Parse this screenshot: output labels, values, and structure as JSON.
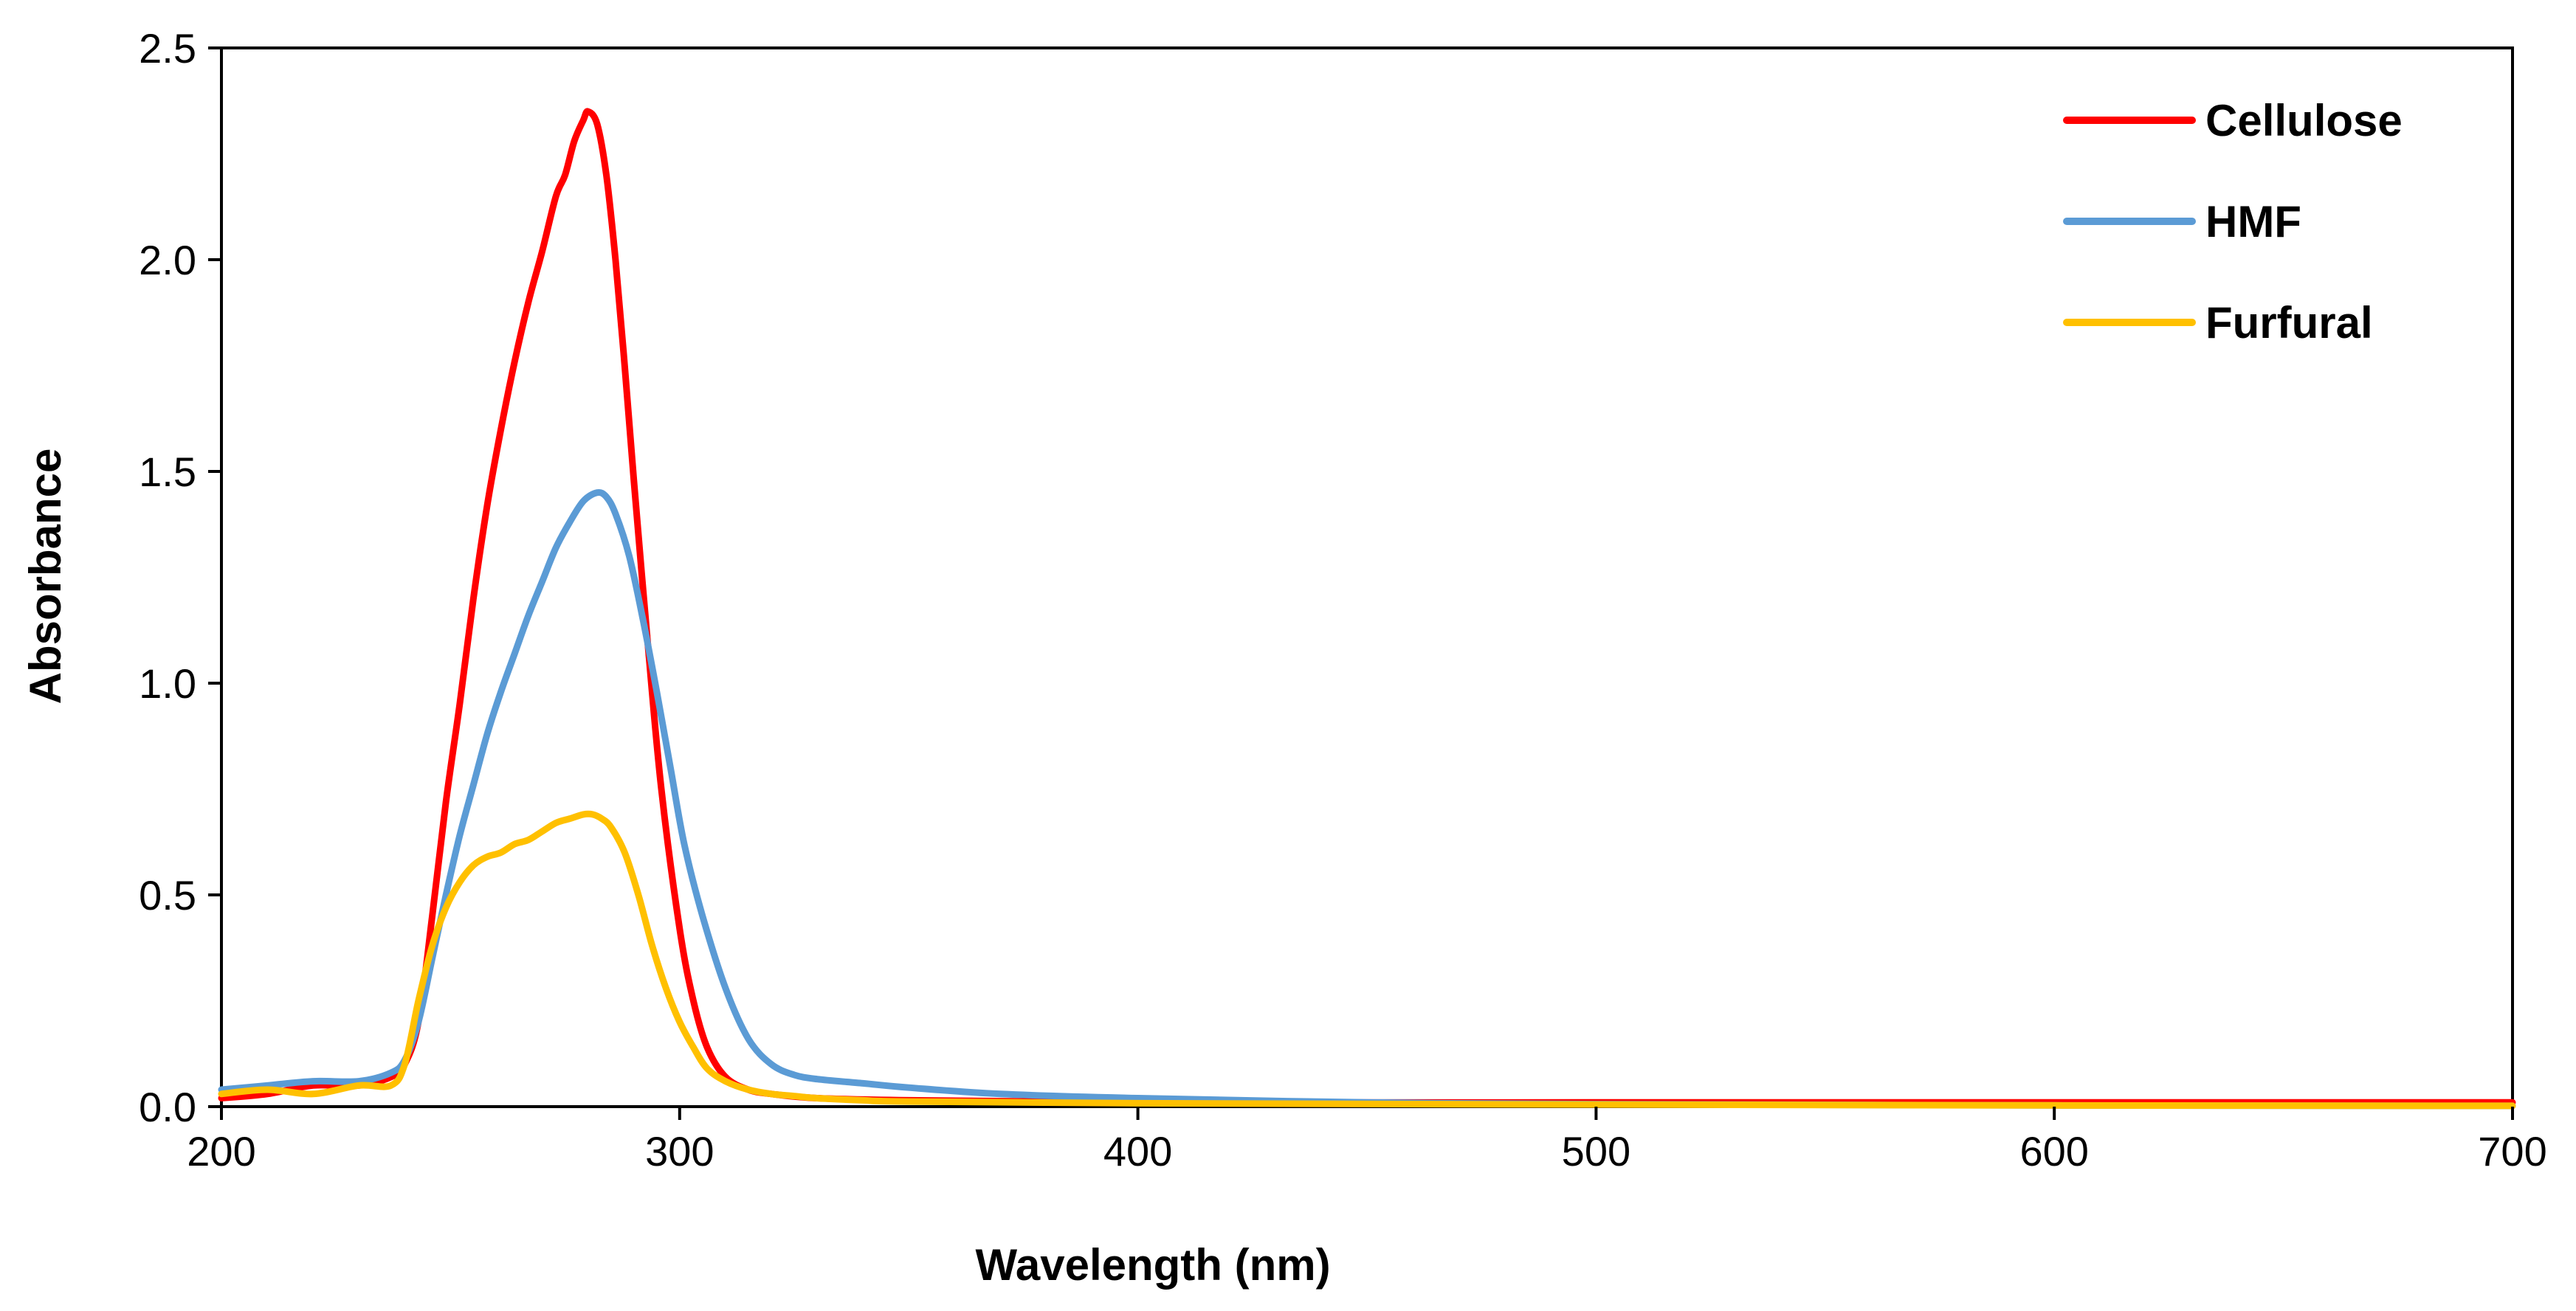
{
  "chart_data": {
    "type": "line",
    "title": "",
    "xlabel": "Wavelength (nm)",
    "ylabel": "Absorbance",
    "xlim": [
      200,
      700
    ],
    "ylim": [
      0,
      2.5
    ],
    "xticks": [
      200,
      300,
      400,
      500,
      600,
      700
    ],
    "yticks": [
      0,
      0.5,
      1,
      1.5,
      2,
      2.5
    ],
    "xtick_labels": [
      "200",
      "300",
      "400",
      "500",
      "600",
      "700"
    ],
    "ytick_labels": [
      "0.0",
      "0.5",
      "1.0",
      "1.5",
      "2.0",
      "2.5"
    ],
    "grid": false,
    "legend_position": "top-right",
    "series": [
      {
        "name": "Cellulose",
        "color": "#ff0000",
        "x": [
          200,
          210,
          220,
          230,
          237,
          240,
          243,
          246,
          249,
          252,
          255,
          258,
          261,
          264,
          267,
          270,
          273,
          275,
          277,
          279,
          280,
          282,
          284,
          286,
          288,
          290,
          293,
          296,
          300,
          303,
          306,
          310,
          315,
          320,
          330,
          350,
          400,
          500,
          600,
          700
        ],
        "y": [
          0.02,
          0.03,
          0.05,
          0.05,
          0.07,
          0.1,
          0.2,
          0.45,
          0.72,
          0.95,
          1.2,
          1.42,
          1.6,
          1.76,
          1.9,
          2.02,
          2.15,
          2.2,
          2.28,
          2.33,
          2.35,
          2.32,
          2.2,
          2.0,
          1.75,
          1.48,
          1.1,
          0.75,
          0.42,
          0.25,
          0.14,
          0.07,
          0.04,
          0.03,
          0.02,
          0.015,
          0.01,
          0.01,
          0.01,
          0.01
        ]
      },
      {
        "name": "HMF",
        "color": "#5b9bd5",
        "x": [
          200,
          210,
          220,
          230,
          237,
          240,
          243,
          246,
          249,
          252,
          255,
          258,
          261,
          264,
          267,
          270,
          273,
          276,
          279,
          282,
          284,
          286,
          289,
          292,
          295,
          298,
          301,
          305,
          310,
          315,
          320,
          325,
          330,
          340,
          350,
          370,
          400,
          450,
          500,
          600,
          700
        ],
        "y": [
          0.04,
          0.05,
          0.06,
          0.06,
          0.08,
          0.11,
          0.2,
          0.35,
          0.5,
          0.64,
          0.76,
          0.88,
          0.98,
          1.07,
          1.16,
          1.24,
          1.32,
          1.38,
          1.43,
          1.45,
          1.44,
          1.4,
          1.3,
          1.15,
          0.98,
          0.8,
          0.62,
          0.45,
          0.28,
          0.16,
          0.1,
          0.075,
          0.065,
          0.055,
          0.045,
          0.03,
          0.02,
          0.01,
          0.006,
          0.003,
          0.002
        ]
      },
      {
        "name": "Furfural",
        "color": "#ffc000",
        "x": [
          200,
          210,
          220,
          230,
          237,
          240,
          243,
          246,
          249,
          252,
          255,
          258,
          261,
          264,
          267,
          270,
          273,
          276,
          279,
          281,
          283,
          285,
          288,
          291,
          294,
          297,
          300,
          303,
          306,
          310,
          315,
          320,
          325,
          330,
          340,
          350,
          400,
          500,
          600,
          700
        ],
        "y": [
          0.03,
          0.04,
          0.03,
          0.05,
          0.05,
          0.1,
          0.25,
          0.38,
          0.47,
          0.53,
          0.57,
          0.59,
          0.6,
          0.62,
          0.63,
          0.65,
          0.67,
          0.68,
          0.69,
          0.69,
          0.68,
          0.66,
          0.6,
          0.5,
          0.38,
          0.28,
          0.2,
          0.14,
          0.09,
          0.06,
          0.04,
          0.03,
          0.025,
          0.02,
          0.015,
          0.012,
          0.008,
          0.005,
          0.003,
          0.002
        ]
      }
    ]
  }
}
